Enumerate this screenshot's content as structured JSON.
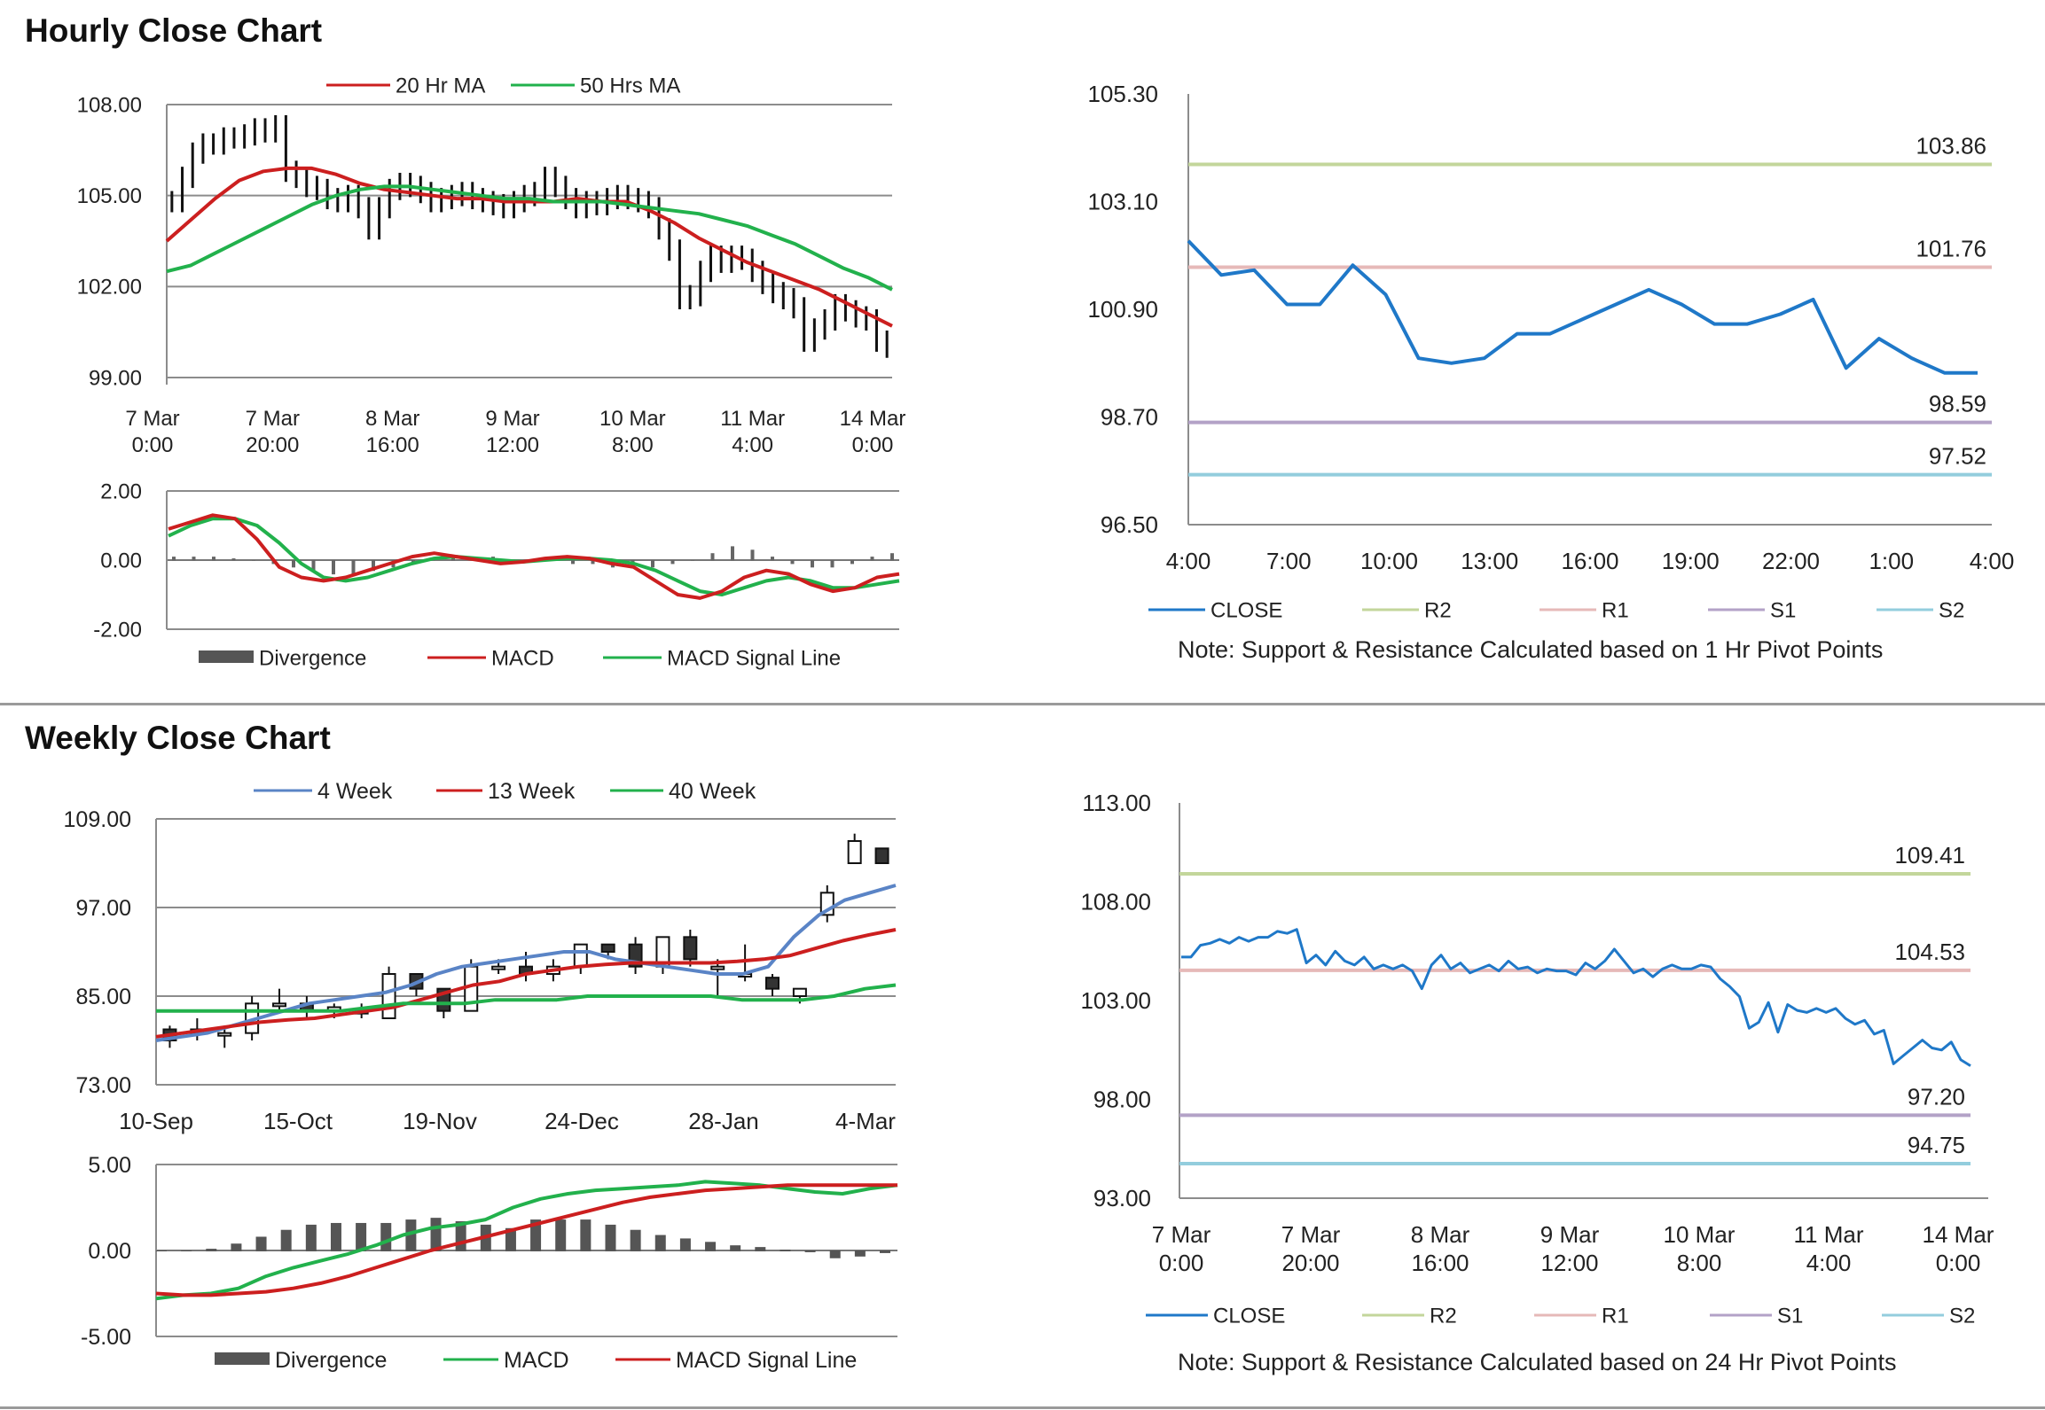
{
  "sections": {
    "hourly_title": "Hourly Close Chart",
    "weekly_title": "Weekly Close Chart",
    "hourly_note": "Note: Support & Resistance Calculated based on 1 Hr Pivot Points",
    "weekly_note": "Note:  Support & Resistance Calculated based on 24 Hr Pivot Points"
  },
  "colors": {
    "close": "#1f78c8",
    "r2": "#c3d69b",
    "r1": "#e6b9b8",
    "s1": "#b3a2c7",
    "s2": "#93cddd",
    "ma_red": "#cc1f1f",
    "ma_green": "#22b14c",
    "ma_blue": "#5a84c6",
    "divergence": "#555555",
    "grid": "#8c8c8c"
  },
  "chart_data": [
    {
      "id": "hourly_price",
      "type": "candlestick",
      "legend": [
        "20 Hr MA",
        "50 Hrs MA"
      ],
      "ylim": [
        99,
        108
      ],
      "yticks": [
        "108.00",
        "105.00",
        "102.00",
        "99.00"
      ],
      "xticks": [
        "7 Mar\n0:00",
        "7 Mar\n20:00",
        "8 Mar\n16:00",
        "9 Mar\n12:00",
        "10 Mar\n8:00",
        "11 Mar\n4:00",
        "14 Mar\n0:00"
      ],
      "close": [
        104.8,
        105.6,
        106.4,
        106.7,
        106.7,
        106.9,
        106.9,
        107.0,
        107.2,
        107.1,
        107.3,
        105.8,
        105.6,
        105.3,
        105.2,
        104.9,
        104.8,
        105.0,
        104.6,
        103.9,
        104.6,
        105.2,
        105.4,
        105.3,
        105.1,
        104.8,
        104.9,
        105.0,
        105.1,
        104.9,
        104.8,
        104.7,
        104.6,
        104.8,
        105.0,
        105.1,
        105.6,
        105.3,
        104.9,
        104.6,
        104.8,
        104.7,
        104.9,
        105.0,
        104.9,
        104.8,
        104.6,
        103.9,
        103.2,
        101.6,
        101.7,
        102.5,
        103.0,
        102.8,
        103.0,
        102.9,
        102.5,
        102.1,
        101.8,
        101.6,
        101.3,
        100.2,
        100.6,
        100.9,
        101.4,
        101.2,
        101.0,
        100.9,
        100.2,
        100.0
      ],
      "series": [
        {
          "name": "20 Hr MA",
          "values": [
            103.5,
            104.2,
            104.9,
            105.5,
            105.8,
            105.9,
            105.9,
            105.7,
            105.4,
            105.2,
            105.1,
            105.0,
            104.9,
            104.9,
            104.8,
            104.8,
            104.8,
            104.9,
            104.8,
            104.8,
            104.5,
            104.1,
            103.6,
            103.2,
            102.8,
            102.5,
            102.2,
            101.9,
            101.5,
            101.1,
            100.7
          ]
        },
        {
          "name": "50 Hrs MA",
          "values": [
            102.5,
            102.7,
            103.1,
            103.5,
            103.9,
            104.3,
            104.7,
            105.0,
            105.2,
            105.3,
            105.3,
            105.2,
            105.1,
            105.0,
            104.9,
            104.9,
            104.8,
            104.8,
            104.8,
            104.7,
            104.6,
            104.5,
            104.4,
            104.2,
            104.0,
            103.7,
            103.4,
            103.0,
            102.6,
            102.3,
            101.9
          ]
        }
      ]
    },
    {
      "id": "hourly_macd",
      "type": "line",
      "legend": [
        "Divergence",
        "MACD",
        "MACD  Signal Line"
      ],
      "ylim": [
        -2,
        2
      ],
      "yticks": [
        "2.00",
        "0.00",
        "-2.00"
      ],
      "divergence": [
        0.1,
        0.1,
        0.1,
        0.05,
        0,
        -0.1,
        -0.2,
        -0.3,
        -0.4,
        -0.4,
        -0.3,
        -0.2,
        -0.1,
        0,
        0.1,
        0.1,
        0.1,
        0,
        0,
        0,
        -0.1,
        -0.1,
        -0.2,
        -0.2,
        -0.2,
        -0.1,
        0,
        0.2,
        0.4,
        0.3,
        0.1,
        -0.1,
        -0.2,
        -0.2,
        -0.1,
        0.1,
        0.2
      ],
      "series": [
        {
          "name": "MACD",
          "values": [
            0.9,
            1.1,
            1.3,
            1.2,
            0.6,
            -0.2,
            -0.5,
            -0.6,
            -0.5,
            -0.3,
            -0.1,
            0.1,
            0.2,
            0.1,
            0,
            -0.1,
            -0.05,
            0.05,
            0.1,
            0.05,
            -0.1,
            -0.2,
            -0.6,
            -1.0,
            -1.1,
            -0.9,
            -0.5,
            -0.3,
            -0.4,
            -0.7,
            -0.9,
            -0.8,
            -0.5,
            -0.4
          ]
        },
        {
          "name": "MACD  Signal Line",
          "values": [
            0.7,
            1.0,
            1.2,
            1.2,
            1.0,
            0.5,
            -0.1,
            -0.5,
            -0.6,
            -0.5,
            -0.3,
            -0.1,
            0.05,
            0.1,
            0.05,
            0,
            -0.05,
            0,
            0.05,
            0.05,
            0,
            -0.1,
            -0.3,
            -0.6,
            -0.9,
            -1.0,
            -0.8,
            -0.6,
            -0.5,
            -0.6,
            -0.8,
            -0.8,
            -0.7,
            -0.6
          ]
        }
      ]
    },
    {
      "id": "hourly_close",
      "type": "line",
      "ylim": [
        96.5,
        105.3
      ],
      "yticks": [
        "105.30",
        "103.10",
        "100.90",
        "98.70",
        "96.50"
      ],
      "xticks": [
        "4:00",
        "7:00",
        "10:00",
        "13:00",
        "16:00",
        "19:00",
        "22:00",
        "1:00",
        "4:00"
      ],
      "legend": [
        "CLOSE",
        "R2",
        "R1",
        "S1",
        "S2"
      ],
      "close": [
        102.3,
        101.6,
        101.7,
        101.0,
        101.0,
        101.8,
        101.2,
        99.9,
        99.8,
        99.9,
        100.4,
        100.4,
        100.7,
        101.0,
        101.3,
        101.0,
        100.6,
        100.6,
        100.8,
        101.1,
        99.7,
        100.3,
        99.9,
        99.6,
        99.6
      ],
      "levels": {
        "R2": 103.86,
        "R1": 101.76,
        "S1": 98.59,
        "S2": 97.52
      },
      "level_labels": {
        "R2": "103.86",
        "R1": "101.76",
        "S1": "98.59",
        "S2": "97.52"
      }
    },
    {
      "id": "weekly_price",
      "type": "candlestick",
      "legend": [
        "4 Week",
        "13 Week",
        "40 Week"
      ],
      "ylim": [
        73,
        109
      ],
      "yticks": [
        "109.00",
        "97.00",
        "85.00",
        "73.00"
      ],
      "xticks": [
        "10-Sep",
        "15-Oct",
        "19-Nov",
        "24-Dec",
        "28-Jan",
        "4-Mar"
      ],
      "candles": [
        [
          80.5,
          79,
          81,
          78
        ],
        [
          80,
          80.5,
          82,
          79
        ],
        [
          80,
          80,
          81,
          78
        ],
        [
          80,
          84,
          85,
          79
        ],
        [
          84,
          84,
          86,
          83
        ],
        [
          84,
          83,
          85,
          82
        ],
        [
          83,
          83.5,
          84,
          82
        ],
        [
          83,
          83,
          84,
          82
        ],
        [
          82,
          88,
          89,
          82
        ],
        [
          88,
          86,
          88,
          85
        ],
        [
          86,
          83,
          86,
          82
        ],
        [
          83,
          89,
          90,
          83
        ],
        [
          89,
          89,
          90,
          88
        ],
        [
          89,
          88,
          91,
          87
        ],
        [
          88,
          89,
          90,
          87
        ],
        [
          89,
          92,
          92,
          88
        ],
        [
          92,
          91,
          92,
          90
        ],
        [
          92,
          89,
          93,
          88
        ],
        [
          89,
          93,
          93,
          88
        ],
        [
          93,
          90,
          94,
          89
        ],
        [
          89,
          89,
          90,
          85
        ],
        [
          88,
          88,
          92,
          87
        ],
        [
          87.5,
          86,
          88,
          85
        ],
        [
          85,
          86,
          86,
          84
        ],
        [
          96,
          99,
          100,
          95
        ],
        [
          103,
          106,
          107,
          103
        ],
        [
          105,
          103,
          105,
          103
        ]
      ],
      "series": [
        {
          "name": "4 Week",
          "values": [
            79,
            79.5,
            80,
            81,
            82,
            83,
            84,
            84.5,
            85,
            85.5,
            86.5,
            88,
            89,
            89.5,
            90,
            90.5,
            91,
            91,
            90,
            89.5,
            89,
            88.5,
            88,
            88,
            89,
            93,
            96,
            98,
            99,
            100
          ]
        },
        {
          "name": "13 Week",
          "values": [
            79.5,
            80,
            80.5,
            81,
            81.5,
            81.8,
            82,
            82.5,
            83,
            83.5,
            84.5,
            85.5,
            86.5,
            87,
            88,
            88.5,
            89,
            89.3,
            89.5,
            89.5,
            89.5,
            89.5,
            89.7,
            90,
            90.5,
            91.5,
            92.5,
            93.3,
            94
          ]
        },
        {
          "name": "40 Week",
          "values": [
            83,
            83,
            83,
            83,
            83,
            83,
            83,
            83.5,
            84,
            84,
            84,
            84.5,
            84.5,
            84.5,
            85,
            85,
            85,
            85,
            85,
            84.5,
            84.5,
            84.5,
            85,
            86,
            86.5
          ]
        }
      ]
    },
    {
      "id": "weekly_macd",
      "type": "line",
      "legend": [
        "Divergence",
        "MACD",
        "MACD  Signal Line"
      ],
      "ylim": [
        -5,
        5
      ],
      "yticks": [
        "5.00",
        "0.00",
        "-5.00"
      ],
      "divergence": [
        0,
        0,
        0.1,
        0.4,
        0.8,
        1.2,
        1.5,
        1.6,
        1.6,
        1.6,
        1.8,
        1.9,
        1.7,
        1.5,
        1.3,
        1.8,
        1.8,
        1.8,
        1.5,
        1.2,
        0.9,
        0.7,
        0.5,
        0.3,
        0.2,
        0.05,
        -0.05,
        -0.4,
        -0.3,
        -0.1
      ],
      "series": [
        {
          "name": "MACD",
          "values": [
            -2.8,
            -2.6,
            -2.5,
            -2.2,
            -1.5,
            -1.0,
            -0.6,
            -0.2,
            0.3,
            0.9,
            1.3,
            1.5,
            1.8,
            2.5,
            3.0,
            3.3,
            3.5,
            3.6,
            3.7,
            3.8,
            4.0,
            3.9,
            3.8,
            3.6,
            3.4,
            3.3,
            3.6,
            3.8
          ]
        },
        {
          "name": "MACD  Signal Line",
          "values": [
            -2.5,
            -2.6,
            -2.6,
            -2.5,
            -2.4,
            -2.2,
            -1.9,
            -1.5,
            -1.0,
            -0.5,
            0,
            0.4,
            0.8,
            1.2,
            1.6,
            2.0,
            2.4,
            2.8,
            3.1,
            3.3,
            3.5,
            3.6,
            3.7,
            3.8,
            3.8,
            3.8,
            3.8,
            3.8
          ]
        }
      ]
    },
    {
      "id": "weekly_close",
      "type": "line",
      "ylim": [
        93,
        113
      ],
      "yticks": [
        "113.00",
        "108.00",
        "103.00",
        "98.00",
        "93.00"
      ],
      "xticks": [
        "7 Mar\n0:00",
        "7 Mar\n20:00",
        "8 Mar\n16:00",
        "9 Mar\n12:00",
        "10 Mar\n8:00",
        "11 Mar\n4:00",
        "14 Mar\n0:00"
      ],
      "legend": [
        "CLOSE",
        "R2",
        "R1",
        "S1",
        "S2"
      ],
      "close": [
        105.2,
        105.2,
        105.8,
        105.9,
        106.1,
        105.9,
        106.2,
        106.0,
        106.2,
        106.2,
        106.5,
        106.4,
        106.6,
        104.9,
        105.3,
        104.8,
        105.5,
        105.0,
        104.8,
        105.2,
        104.6,
        104.8,
        104.6,
        104.8,
        104.5,
        103.6,
        104.8,
        105.3,
        104.6,
        104.9,
        104.4,
        104.6,
        104.8,
        104.5,
        105.0,
        104.6,
        104.7,
        104.4,
        104.6,
        104.5,
        104.5,
        104.3,
        104.9,
        104.6,
        105.0,
        105.6,
        105.0,
        104.4,
        104.6,
        104.2,
        104.6,
        104.8,
        104.6,
        104.6,
        104.8,
        104.7,
        104.1,
        103.7,
        103.2,
        101.6,
        101.9,
        102.9,
        101.4,
        102.8,
        102.5,
        102.4,
        102.6,
        102.4,
        102.6,
        102.1,
        101.8,
        102.0,
        101.3,
        101.5,
        99.8,
        100.2,
        100.6,
        101.0,
        100.6,
        100.5,
        100.9,
        100.0,
        99.7
      ],
      "levels": {
        "R2": 109.41,
        "R1": 104.53,
        "S1": 97.2,
        "S2": 94.75
      },
      "level_labels": {
        "R2": "109.41",
        "R1": "104.53",
        "S1": "97.20",
        "S2": "94.75"
      }
    }
  ]
}
